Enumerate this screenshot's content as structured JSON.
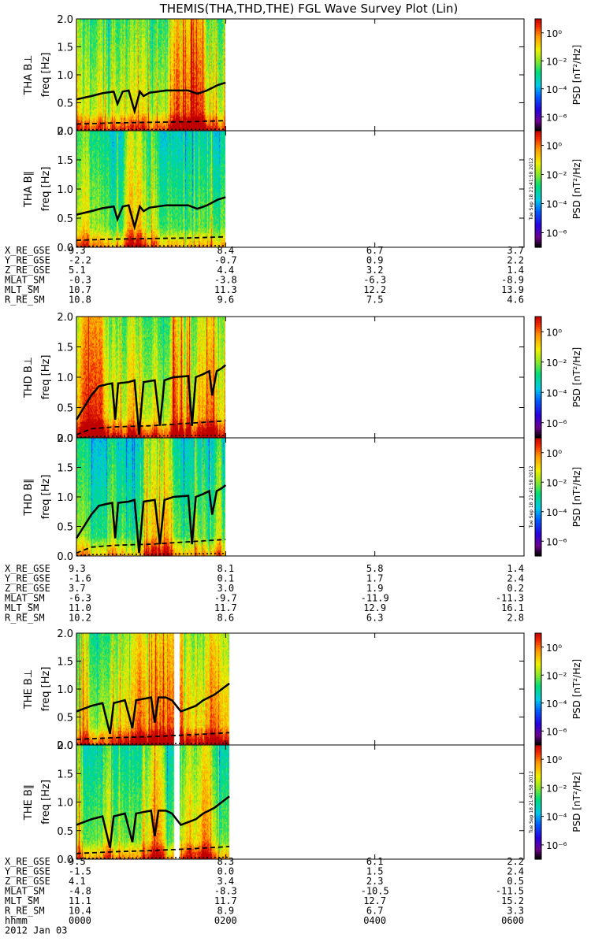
{
  "title": "THEMIS(THA,THD,THE) FGL Wave Survey Plot (Lin)",
  "colors": {
    "trace": "#000000",
    "frame": "#000000",
    "background": "#ffffff"
  },
  "colorbar": {
    "label": "PSD [nT²/Hz]",
    "tick_labels": [
      "10⁰",
      "10⁻²",
      "10⁻⁴",
      "10⁻⁶"
    ],
    "tick_exponents": [
      0,
      -2,
      -4,
      -6
    ],
    "range_exponent": [
      -7,
      1
    ],
    "stamp": "Tue Sep 18 21:41:58 2012"
  },
  "chart_data": {
    "type": "heatmap",
    "x_axis": {
      "range_hours": [
        0,
        6
      ],
      "tick_hours": [
        0,
        2,
        4,
        6
      ],
      "tick_labels": [
        "0000",
        "0200",
        "0400",
        "0600"
      ],
      "row_label": "hhmm",
      "date_label": "2012 Jan 03"
    },
    "y_axis": {
      "range": [
        0,
        2.0
      ],
      "ticks": [
        0.0,
        0.5,
        1.0,
        1.5,
        2.0
      ],
      "tick_labels": [
        "0.0",
        "0.5",
        "1.0",
        "1.5",
        "2.0"
      ],
      "label": "freq [Hz]"
    },
    "probes": [
      {
        "name": "THA",
        "panels": [
          {
            "label": "THA B⊥",
            "data_end_hours": 2.0,
            "gap": null,
            "base_level": 0.7,
            "low_freq_boost": 1.0,
            "fce_line": [
              [
                0,
                0.56
              ],
              [
                0.2,
                0.62
              ],
              [
                0.35,
                0.67
              ],
              [
                0.5,
                0.7
              ],
              [
                0.55,
                0.48
              ],
              [
                0.62,
                0.7
              ],
              [
                0.7,
                0.72
              ],
              [
                0.78,
                0.35
              ],
              [
                0.85,
                0.7
              ],
              [
                0.9,
                0.62
              ],
              [
                0.98,
                0.68
              ],
              [
                1.2,
                0.72
              ],
              [
                1.5,
                0.72
              ],
              [
                1.62,
                0.66
              ],
              [
                1.75,
                0.72
              ],
              [
                1.9,
                0.82
              ],
              [
                2.0,
                0.86
              ]
            ],
            "dash_line": [
              [
                0,
                0.12
              ],
              [
                0.5,
                0.14
              ],
              [
                1.0,
                0.15
              ],
              [
                1.5,
                0.16
              ],
              [
                2.0,
                0.18
              ]
            ]
          },
          {
            "label": "THA B∥",
            "data_end_hours": 2.0,
            "gap": null,
            "base_level": 0.4,
            "low_freq_boost": 0.9,
            "fce_line": [
              [
                0,
                0.56
              ],
              [
                0.2,
                0.62
              ],
              [
                0.35,
                0.67
              ],
              [
                0.5,
                0.7
              ],
              [
                0.55,
                0.48
              ],
              [
                0.62,
                0.7
              ],
              [
                0.7,
                0.72
              ],
              [
                0.78,
                0.35
              ],
              [
                0.85,
                0.7
              ],
              [
                0.9,
                0.62
              ],
              [
                0.98,
                0.68
              ],
              [
                1.2,
                0.72
              ],
              [
                1.5,
                0.72
              ],
              [
                1.62,
                0.66
              ],
              [
                1.75,
                0.72
              ],
              [
                1.9,
                0.82
              ],
              [
                2.0,
                0.86
              ]
            ],
            "dash_line": [
              [
                0,
                0.12
              ],
              [
                0.5,
                0.14
              ],
              [
                1.0,
                0.15
              ],
              [
                1.5,
                0.16
              ],
              [
                2.0,
                0.18
              ]
            ]
          }
        ],
        "ephemeris": {
          "tick_hours": [
            0,
            2,
            4,
            6
          ],
          "rows": [
            {
              "name": "X_RE_GSE",
              "values": [
                "9.3",
                "8.4",
                "6.7",
                "3.7"
              ]
            },
            {
              "name": "Y_RE_GSE",
              "values": [
                "-2.2",
                "-0.7",
                "0.9",
                "2.2"
              ]
            },
            {
              "name": "Z_RE_GSE",
              "values": [
                "5.1",
                "4.4",
                "3.2",
                "1.4"
              ]
            },
            {
              "name": "MLAT_SM",
              "values": [
                "-0.3",
                "-3.8",
                "-6.3",
                "-8.9"
              ]
            },
            {
              "name": "MLT_SM",
              "values": [
                "10.7",
                "11.3",
                "12.2",
                "13.9"
              ]
            },
            {
              "name": "R_RE_SM",
              "values": [
                "10.8",
                "9.6",
                "7.5",
                "4.6"
              ]
            }
          ]
        }
      },
      {
        "name": "THD",
        "panels": [
          {
            "label": "THD B⊥",
            "data_end_hours": 2.0,
            "gap": null,
            "base_level": 0.75,
            "low_freq_boost": 1.0,
            "fce_line": [
              [
                0,
                0.3
              ],
              [
                0.1,
                0.5
              ],
              [
                0.2,
                0.7
              ],
              [
                0.3,
                0.85
              ],
              [
                0.4,
                0.88
              ],
              [
                0.48,
                0.9
              ],
              [
                0.52,
                0.3
              ],
              [
                0.56,
                0.9
              ],
              [
                0.7,
                0.92
              ],
              [
                0.78,
                0.95
              ],
              [
                0.84,
                0.05
              ],
              [
                0.9,
                0.92
              ],
              [
                1.05,
                0.95
              ],
              [
                1.12,
                0.2
              ],
              [
                1.18,
                0.95
              ],
              [
                1.3,
                1.0
              ],
              [
                1.5,
                1.02
              ],
              [
                1.55,
                0.2
              ],
              [
                1.6,
                1.0
              ],
              [
                1.7,
                1.05
              ],
              [
                1.78,
                1.1
              ],
              [
                1.82,
                0.7
              ],
              [
                1.88,
                1.1
              ],
              [
                1.95,
                1.15
              ],
              [
                2.0,
                1.2
              ]
            ],
            "dash_line": [
              [
                0,
                0.05
              ],
              [
                0.2,
                0.15
              ],
              [
                0.5,
                0.18
              ],
              [
                1.0,
                0.2
              ],
              [
                1.5,
                0.24
              ],
              [
                2.0,
                0.28
              ]
            ]
          },
          {
            "label": "THD B∥",
            "data_end_hours": 2.0,
            "gap": null,
            "base_level": 0.35,
            "low_freq_boost": 0.9,
            "fce_line": [
              [
                0,
                0.3
              ],
              [
                0.1,
                0.5
              ],
              [
                0.2,
                0.7
              ],
              [
                0.3,
                0.85
              ],
              [
                0.4,
                0.88
              ],
              [
                0.48,
                0.9
              ],
              [
                0.52,
                0.3
              ],
              [
                0.56,
                0.9
              ],
              [
                0.7,
                0.92
              ],
              [
                0.78,
                0.95
              ],
              [
                0.84,
                0.05
              ],
              [
                0.9,
                0.92
              ],
              [
                1.05,
                0.95
              ],
              [
                1.12,
                0.2
              ],
              [
                1.18,
                0.95
              ],
              [
                1.3,
                1.0
              ],
              [
                1.5,
                1.02
              ],
              [
                1.55,
                0.2
              ],
              [
                1.6,
                1.0
              ],
              [
                1.7,
                1.05
              ],
              [
                1.78,
                1.1
              ],
              [
                1.82,
                0.7
              ],
              [
                1.88,
                1.1
              ],
              [
                1.95,
                1.15
              ],
              [
                2.0,
                1.2
              ]
            ],
            "dash_line": [
              [
                0,
                0.05
              ],
              [
                0.2,
                0.15
              ],
              [
                0.5,
                0.18
              ],
              [
                1.0,
                0.2
              ],
              [
                1.5,
                0.24
              ],
              [
                2.0,
                0.28
              ]
            ]
          }
        ],
        "ephemeris": {
          "tick_hours": [
            0,
            2,
            4,
            6
          ],
          "rows": [
            {
              "name": "X_RE_GSE",
              "values": [
                "9.3",
                "8.1",
                "5.8",
                "1.4"
              ]
            },
            {
              "name": "Y_RE_GSE",
              "values": [
                "-1.6",
                "0.1",
                "1.7",
                "2.4"
              ]
            },
            {
              "name": "Z_RE_GSE",
              "values": [
                "3.7",
                "3.0",
                "1.9",
                "0.2"
              ]
            },
            {
              "name": "MLAT_SM",
              "values": [
                "-6.3",
                "-9.7",
                "-11.9",
                "-11.3"
              ]
            },
            {
              "name": "MLT_SM",
              "values": [
                "11.0",
                "11.7",
                "12.9",
                "16.1"
              ]
            },
            {
              "name": "R_RE_SM",
              "values": [
                "10.2",
                "8.6",
                "6.3",
                "2.8"
              ]
            }
          ]
        }
      },
      {
        "name": "THE",
        "panels": [
          {
            "label": "THE B⊥",
            "data_end_hours": 2.05,
            "gap": [
              1.3,
              1.38
            ],
            "base_level": 0.65,
            "low_freq_boost": 1.0,
            "fce_line": [
              [
                0,
                0.6
              ],
              [
                0.2,
                0.7
              ],
              [
                0.35,
                0.75
              ],
              [
                0.45,
                0.2
              ],
              [
                0.5,
                0.75
              ],
              [
                0.65,
                0.8
              ],
              [
                0.75,
                0.3
              ],
              [
                0.8,
                0.8
              ],
              [
                1.0,
                0.85
              ],
              [
                1.05,
                0.4
              ],
              [
                1.1,
                0.85
              ],
              [
                1.2,
                0.85
              ],
              [
                1.28,
                0.8
              ],
              [
                1.4,
                0.6
              ],
              [
                1.5,
                0.65
              ],
              [
                1.6,
                0.7
              ],
              [
                1.7,
                0.8
              ],
              [
                1.85,
                0.9
              ],
              [
                1.95,
                1.0
              ],
              [
                2.05,
                1.1
              ]
            ],
            "dash_line": [
              [
                0,
                0.1
              ],
              [
                0.5,
                0.13
              ],
              [
                1.0,
                0.15
              ],
              [
                1.5,
                0.18
              ],
              [
                2.05,
                0.22
              ]
            ]
          },
          {
            "label": "THE B∥",
            "data_end_hours": 2.05,
            "gap": [
              1.3,
              1.38
            ],
            "base_level": 0.5,
            "low_freq_boost": 0.9,
            "fce_line": [
              [
                0,
                0.6
              ],
              [
                0.2,
                0.7
              ],
              [
                0.35,
                0.75
              ],
              [
                0.45,
                0.2
              ],
              [
                0.5,
                0.75
              ],
              [
                0.65,
                0.8
              ],
              [
                0.75,
                0.3
              ],
              [
                0.8,
                0.8
              ],
              [
                1.0,
                0.85
              ],
              [
                1.05,
                0.4
              ],
              [
                1.1,
                0.85
              ],
              [
                1.2,
                0.85
              ],
              [
                1.28,
                0.8
              ],
              [
                1.4,
                0.6
              ],
              [
                1.5,
                0.65
              ],
              [
                1.6,
                0.7
              ],
              [
                1.7,
                0.8
              ],
              [
                1.85,
                0.9
              ],
              [
                1.95,
                1.0
              ],
              [
                2.05,
                1.1
              ]
            ],
            "dash_line": [
              [
                0,
                0.1
              ],
              [
                0.5,
                0.13
              ],
              [
                1.0,
                0.15
              ],
              [
                1.5,
                0.18
              ],
              [
                2.05,
                0.22
              ]
            ]
          }
        ],
        "ephemeris": {
          "tick_hours": [
            0,
            2,
            4,
            6
          ],
          "rows": [
            {
              "name": "X_RE_GSE",
              "values": [
                "9.5",
                "8.3",
                "6.1",
                "2.2"
              ]
            },
            {
              "name": "Y_RE_GSE",
              "values": [
                "-1.5",
                "0.0",
                "1.5",
                "2.4"
              ]
            },
            {
              "name": "Z_RE_GSE",
              "values": [
                "4.1",
                "3.4",
                "2.3",
                "0.5"
              ]
            },
            {
              "name": "MLAT_SM",
              "values": [
                "-4.8",
                "-8.3",
                "-10.5",
                "-11.5"
              ]
            },
            {
              "name": "MLT_SM",
              "values": [
                "11.1",
                "11.7",
                "12.7",
                "15.2"
              ]
            },
            {
              "name": "R_RE_SM",
              "values": [
                "10.4",
                "8.9",
                "6.7",
                "3.3"
              ]
            }
          ]
        }
      }
    ]
  }
}
